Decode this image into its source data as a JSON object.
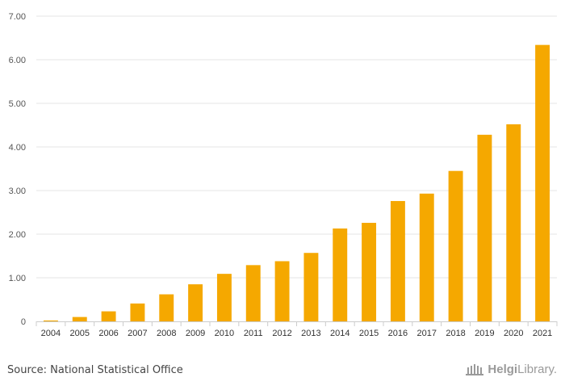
{
  "chart_data": {
    "type": "bar",
    "title": "",
    "xlabel": "",
    "ylabel": "",
    "ylim": [
      0,
      7
    ],
    "y_ticks": [
      "0",
      "1.00",
      "2.00",
      "3.00",
      "4.00",
      "5.00",
      "6.00",
      "7.00"
    ],
    "y_tick_values": [
      0,
      1,
      2,
      3,
      4,
      5,
      6,
      7
    ],
    "categories": [
      "2004",
      "2005",
      "2006",
      "2007",
      "2008",
      "2009",
      "2010",
      "2011",
      "2012",
      "2013",
      "2014",
      "2015",
      "2016",
      "2017",
      "2018",
      "2019",
      "2020",
      "2021"
    ],
    "values": [
      0.02,
      0.1,
      0.23,
      0.41,
      0.62,
      0.85,
      1.09,
      1.29,
      1.38,
      1.57,
      2.13,
      2.26,
      2.76,
      2.93,
      3.45,
      4.28,
      4.52,
      6.34
    ],
    "grid": true,
    "bar_color": "#F5A800"
  },
  "footer": {
    "source": "Source: National Statistical Office",
    "logo_text_bold": "Helgi",
    "logo_text_light": "Library."
  }
}
